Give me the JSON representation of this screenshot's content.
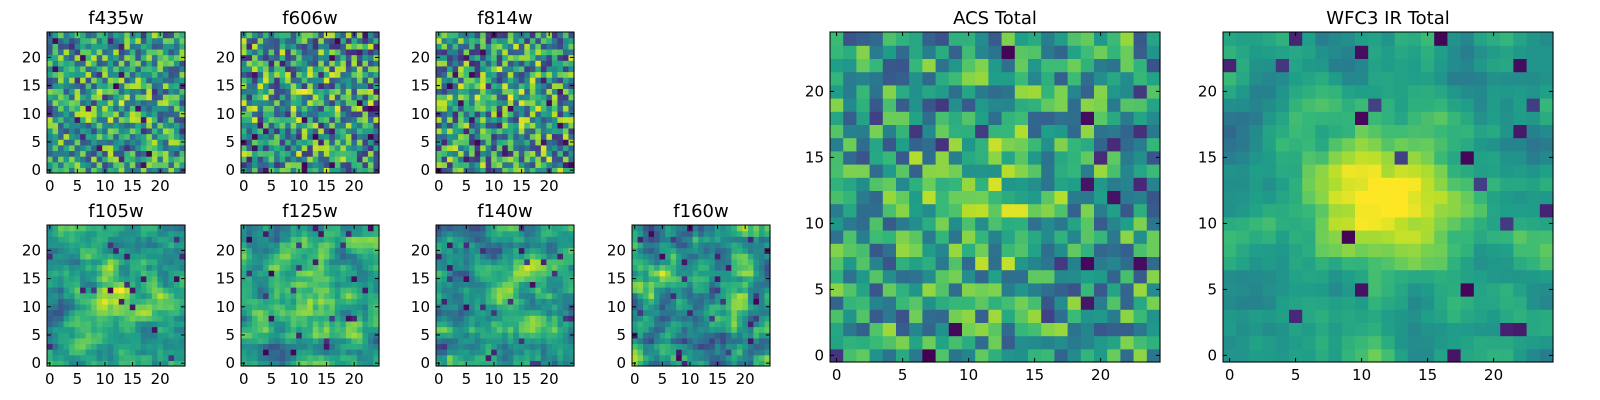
{
  "chart_data": [
    {
      "type": "heatmap",
      "title": "f435w",
      "colormap": "viridis",
      "grid": false,
      "xlim": [
        -0.5,
        24.5
      ],
      "ylim": [
        -0.5,
        24.5
      ],
      "grid_size": [
        25,
        25
      ],
      "seed": 435,
      "blur": 0,
      "noise": 0.35,
      "center_bright": 0.1,
      "dark_fraction": 0.05,
      "xticks": [
        0,
        5,
        10,
        15,
        20
      ],
      "yticks": [
        0,
        5,
        10,
        15,
        20
      ],
      "xtick_labels": [
        "0",
        "5",
        "10",
        "15",
        "20"
      ],
      "ytick_labels": [
        "0",
        "5",
        "10",
        "15",
        "20"
      ]
    },
    {
      "type": "heatmap",
      "title": "f606w",
      "colormap": "viridis",
      "grid": false,
      "xlim": [
        -0.5,
        24.5
      ],
      "ylim": [
        -0.5,
        24.5
      ],
      "grid_size": [
        25,
        25
      ],
      "seed": 606,
      "blur": 0,
      "noise": 0.4,
      "center_bright": 0.05,
      "dark_fraction": 0.06,
      "xticks": [
        0,
        5,
        10,
        15,
        20
      ],
      "yticks": [
        0,
        5,
        10,
        15,
        20
      ],
      "xtick_labels": [
        "0",
        "5",
        "10",
        "15",
        "20"
      ],
      "ytick_labels": [
        "0",
        "5",
        "10",
        "15",
        "20"
      ]
    },
    {
      "type": "heatmap",
      "title": "f814w",
      "colormap": "viridis",
      "grid": false,
      "xlim": [
        -0.5,
        24.5
      ],
      "ylim": [
        -0.5,
        24.5
      ],
      "grid_size": [
        25,
        25
      ],
      "seed": 814,
      "blur": 0,
      "noise": 0.4,
      "center_bright": 0.05,
      "dark_fraction": 0.06,
      "xticks": [
        0,
        5,
        10,
        15,
        20
      ],
      "yticks": [
        0,
        5,
        10,
        15,
        20
      ],
      "xtick_labels": [
        "0",
        "5",
        "10",
        "15",
        "20"
      ],
      "ytick_labels": [
        "0",
        "5",
        "10",
        "15",
        "20"
      ]
    },
    {
      "type": "heatmap",
      "title": "f105w",
      "colormap": "viridis",
      "grid": false,
      "xlim": [
        -0.5,
        24.5
      ],
      "ylim": [
        -0.5,
        24.5
      ],
      "grid_size": [
        25,
        25
      ],
      "seed": 105,
      "blur": 1,
      "noise": 0.3,
      "center_bright": 0.3,
      "dark_fraction": 0.03,
      "xticks": [
        0,
        5,
        10,
        15,
        20
      ],
      "yticks": [
        0,
        5,
        10,
        15,
        20
      ],
      "xtick_labels": [
        "0",
        "5",
        "10",
        "15",
        "20"
      ],
      "ytick_labels": [
        "0",
        "5",
        "10",
        "15",
        "20"
      ]
    },
    {
      "type": "heatmap",
      "title": "f125w",
      "colormap": "viridis",
      "grid": false,
      "xlim": [
        -0.5,
        24.5
      ],
      "ylim": [
        -0.5,
        24.5
      ],
      "grid_size": [
        25,
        25
      ],
      "seed": 125,
      "blur": 1,
      "noise": 0.3,
      "center_bright": 0.3,
      "dark_fraction": 0.03,
      "xticks": [
        0,
        5,
        10,
        15,
        20
      ],
      "yticks": [
        0,
        5,
        10,
        15,
        20
      ],
      "xtick_labels": [
        "0",
        "5",
        "10",
        "15",
        "20"
      ],
      "ytick_labels": [
        "0",
        "5",
        "10",
        "15",
        "20"
      ]
    },
    {
      "type": "heatmap",
      "title": "f140w",
      "colormap": "viridis",
      "grid": false,
      "xlim": [
        -0.5,
        24.5
      ],
      "ylim": [
        -0.5,
        24.5
      ],
      "grid_size": [
        25,
        25
      ],
      "seed": 140,
      "blur": 1,
      "noise": 0.35,
      "center_bright": 0.2,
      "dark_fraction": 0.04,
      "xticks": [
        0,
        5,
        10,
        15,
        20
      ],
      "yticks": [
        0,
        5,
        10,
        15,
        20
      ],
      "xtick_labels": [
        "0",
        "5",
        "10",
        "15",
        "20"
      ],
      "ytick_labels": [
        "0",
        "5",
        "10",
        "15",
        "20"
      ]
    },
    {
      "type": "heatmap",
      "title": "f160w",
      "colormap": "viridis",
      "grid": false,
      "xlim": [
        -0.5,
        24.5
      ],
      "ylim": [
        -0.5,
        24.5
      ],
      "grid_size": [
        25,
        25
      ],
      "seed": 160,
      "blur": 1,
      "noise": 0.4,
      "center_bright": 0.1,
      "dark_fraction": 0.04,
      "xticks": [
        0,
        5,
        10,
        15,
        20
      ],
      "yticks": [
        0,
        5,
        10,
        15,
        20
      ],
      "xtick_labels": [
        "0",
        "5",
        "10",
        "15",
        "20"
      ],
      "ytick_labels": [
        "0",
        "5",
        "10",
        "15",
        "20"
      ]
    },
    {
      "type": "heatmap",
      "title": "ACS Total",
      "colormap": "viridis",
      "grid": false,
      "xlim": [
        -0.5,
        24.5
      ],
      "ylim": [
        -0.5,
        24.5
      ],
      "grid_size": [
        25,
        25
      ],
      "seed": 777,
      "blur": 0,
      "noise": 0.3,
      "center_bright": 0.15,
      "dark_fraction": 0.04,
      "xticks": [
        0,
        5,
        10,
        15,
        20
      ],
      "yticks": [
        0,
        5,
        10,
        15,
        20
      ],
      "xtick_labels": [
        "0",
        "5",
        "10",
        "15",
        "20"
      ],
      "ytick_labels": [
        "0",
        "5",
        "10",
        "15",
        "20"
      ]
    },
    {
      "type": "heatmap",
      "title": "WFC3 IR Total",
      "colormap": "viridis",
      "grid": false,
      "xlim": [
        -0.5,
        24.5
      ],
      "ylim": [
        -0.5,
        24.5
      ],
      "grid_size": [
        25,
        25
      ],
      "seed": 333,
      "blur": 1,
      "noise": 0.22,
      "center_bright": 0.45,
      "dark_fraction": 0.03,
      "xticks": [
        0,
        5,
        10,
        15,
        20
      ],
      "yticks": [
        0,
        5,
        10,
        15,
        20
      ],
      "xtick_labels": [
        "0",
        "5",
        "10",
        "15",
        "20"
      ],
      "ytick_labels": [
        "0",
        "5",
        "10",
        "15",
        "20"
      ]
    }
  ]
}
